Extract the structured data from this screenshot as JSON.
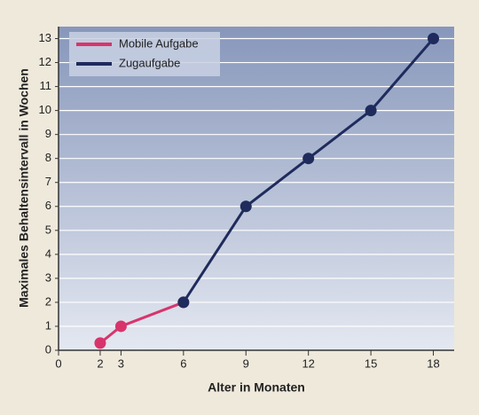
{
  "chart_data": {
    "type": "line",
    "x_label": "Alter in Monaten",
    "y_label": "Maximales Behaltensintervall in Wochen",
    "x": [
      2,
      3,
      6,
      9,
      12,
      15,
      18
    ],
    "series": [
      {
        "name": "Mobile Aufgabe",
        "color": "#d8346c",
        "values": [
          0.3,
          1,
          2,
          null,
          null,
          null,
          null
        ]
      },
      {
        "name": "Zugaufgabe",
        "color": "#1f2b5c",
        "values": [
          null,
          null,
          2,
          6,
          8,
          10,
          13
        ]
      }
    ],
    "xlim": [
      0,
      19
    ],
    "xticks": [
      0,
      2,
      3,
      6,
      9,
      12,
      15,
      18
    ],
    "ylim": [
      0,
      13.5
    ],
    "yticks": [
      0,
      1,
      2,
      3,
      4,
      5,
      6,
      7,
      8,
      9,
      10,
      11,
      12,
      13
    ],
    "grid": true,
    "legend": "upper-left"
  }
}
